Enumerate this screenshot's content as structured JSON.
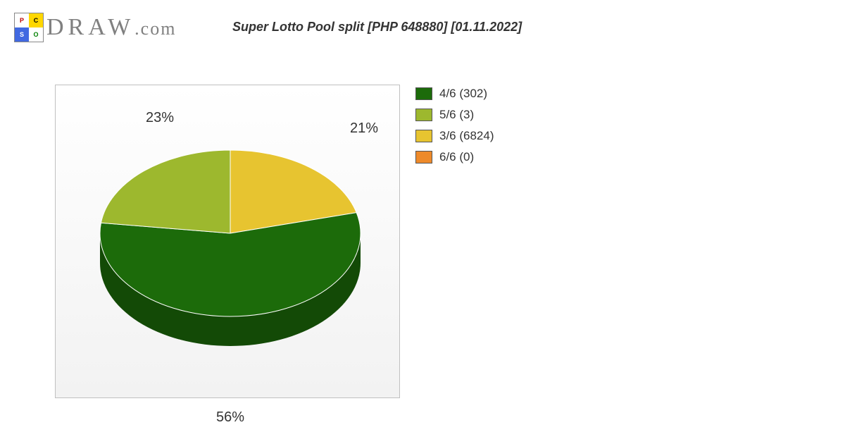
{
  "brand": {
    "logo_letters": [
      "P",
      "C",
      "S",
      "O"
    ],
    "text": "DRAW",
    "ext": ".com",
    "text_color": "#808080"
  },
  "subtitle": "Super Lotto Pool split [PHP 648880] [01.11.2022]",
  "chart": {
    "type": "pie",
    "aspect": "3d-tilt",
    "background_top": "#ffffff",
    "background_bottom": "#f2f2f2",
    "border_color": "#c0c0c0",
    "slices": [
      {
        "key": "4/6",
        "count": 302,
        "pct": 56,
        "label": "56%",
        "color": "#1c6b0a",
        "side_color": "#134a06"
      },
      {
        "key": "5/6",
        "count": 3,
        "pct": 23,
        "label": "23%",
        "color": "#9db82e",
        "side_color": "#7a901f"
      },
      {
        "key": "3/6",
        "count": 6824,
        "pct": 21,
        "label": "21%",
        "color": "#e7c430",
        "side_color": "#b89720"
      },
      {
        "key": "6/6",
        "count": 0,
        "pct": 0,
        "label": "",
        "color": "#ee8a2a",
        "side_color": "#c06d1c"
      }
    ],
    "label_fontsize": 20,
    "label_color": "#333333"
  },
  "legend": {
    "fontsize": 17,
    "swatch_border": "#555555",
    "items": [
      {
        "label": "4/6 (302)",
        "color": "#1c6b0a"
      },
      {
        "label": "5/6 (3)",
        "color": "#9db82e"
      },
      {
        "label": "3/6 (6824)",
        "color": "#e7c430"
      },
      {
        "label": "6/6 (0)",
        "color": "#ee8a2a"
      }
    ]
  }
}
